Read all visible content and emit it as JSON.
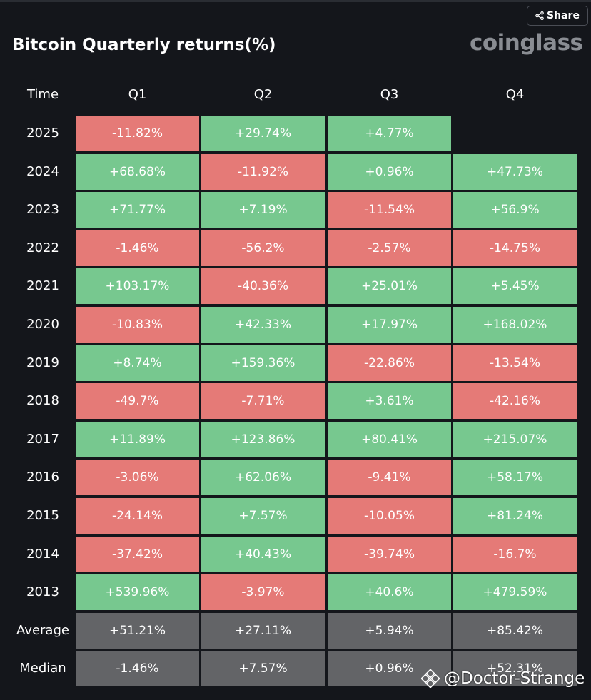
{
  "header": {
    "share_label": "Share",
    "brand": "coinglass",
    "title": "Bitcoin Quarterly returns(%)"
  },
  "watermark": {
    "text": "@Doctor-Strange"
  },
  "colors": {
    "positive": "#77c88f",
    "negative": "#e57a77",
    "summary": "#636467",
    "background": "#14161b"
  },
  "chart_data": {
    "type": "table",
    "title": "Bitcoin Quarterly returns(%)",
    "corner_label": "Time",
    "columns": [
      "Q1",
      "Q2",
      "Q3",
      "Q4"
    ],
    "rows": [
      {
        "label": "2025",
        "values": [
          "-11.82%",
          "+29.74%",
          "+4.77%",
          null
        ]
      },
      {
        "label": "2024",
        "values": [
          "+68.68%",
          "-11.92%",
          "+0.96%",
          "+47.73%"
        ]
      },
      {
        "label": "2023",
        "values": [
          "+71.77%",
          "+7.19%",
          "-11.54%",
          "+56.9%"
        ]
      },
      {
        "label": "2022",
        "values": [
          "-1.46%",
          "-56.2%",
          "-2.57%",
          "-14.75%"
        ]
      },
      {
        "label": "2021",
        "values": [
          "+103.17%",
          "-40.36%",
          "+25.01%",
          "+5.45%"
        ]
      },
      {
        "label": "2020",
        "values": [
          "-10.83%",
          "+42.33%",
          "+17.97%",
          "+168.02%"
        ]
      },
      {
        "label": "2019",
        "values": [
          "+8.74%",
          "+159.36%",
          "-22.86%",
          "-13.54%"
        ]
      },
      {
        "label": "2018",
        "values": [
          "-49.7%",
          "-7.71%",
          "+3.61%",
          "-42.16%"
        ]
      },
      {
        "label": "2017",
        "values": [
          "+11.89%",
          "+123.86%",
          "+80.41%",
          "+215.07%"
        ]
      },
      {
        "label": "2016",
        "values": [
          "-3.06%",
          "+62.06%",
          "-9.41%",
          "+58.17%"
        ]
      },
      {
        "label": "2015",
        "values": [
          "-24.14%",
          "+7.57%",
          "-10.05%",
          "+81.24%"
        ]
      },
      {
        "label": "2014",
        "values": [
          "-37.42%",
          "+40.43%",
          "-39.74%",
          "-16.7%"
        ]
      },
      {
        "label": "2013",
        "values": [
          "+539.96%",
          "-3.97%",
          "+40.6%",
          "+479.59%"
        ]
      }
    ],
    "summary_rows": [
      {
        "label": "Average",
        "values": [
          "+51.21%",
          "+27.11%",
          "+5.94%",
          "+85.42%"
        ]
      },
      {
        "label": "Median",
        "values": [
          "-1.46%",
          "+7.57%",
          "+0.96%",
          "+52.31%"
        ]
      }
    ]
  }
}
